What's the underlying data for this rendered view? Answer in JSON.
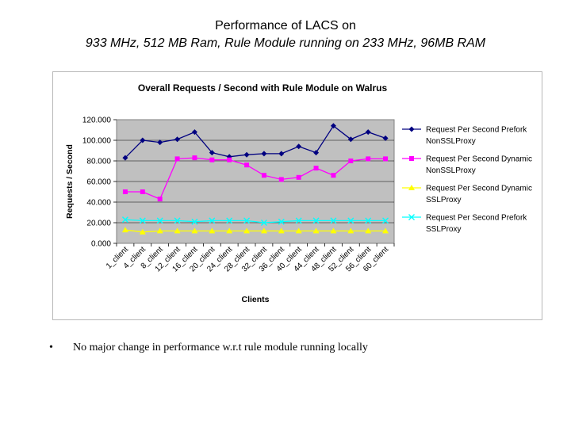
{
  "slide": {
    "title_line1": "Performance of LACS on",
    "title_line2": "933 MHz, 512 MB Ram, Rule Module running on 233 MHz, 96MB RAM",
    "bullet_symbol": "•",
    "bullet_text": "No major change in performance w.r.t rule module running locally"
  },
  "chart_data": {
    "type": "line",
    "title": "Overall Requests / Second with Rule Module on Walrus",
    "xlabel": "Clients",
    "ylabel": "Requests / Second",
    "ylim": [
      0,
      120
    ],
    "yticks": [
      "0.000",
      "20.000",
      "40.000",
      "60.000",
      "80.000",
      "100.000",
      "120.000"
    ],
    "grid": true,
    "legend_position": "right",
    "plot_background": "#c0c0c0",
    "categories": [
      "1_client",
      "4_client",
      "8_client",
      "12_client",
      "16_client",
      "20_client",
      "24_client",
      "28_client",
      "32_client",
      "36_client",
      "40_client",
      "44_client",
      "48_client",
      "52_client",
      "56_client",
      "60_client"
    ],
    "series": [
      {
        "name_line1": "Request Per Second Prefork",
        "name_line2": "NonSSLProxy",
        "color": "#000080",
        "marker": "diamond",
        "values": [
          83,
          100,
          98,
          101,
          108,
          88,
          84,
          86,
          87,
          87,
          94,
          88,
          114,
          101,
          108,
          102
        ]
      },
      {
        "name_line1": "Request Per Second Dynamic",
        "name_line2": "NonSSLProxy",
        "color": "#ff00ff",
        "marker": "square",
        "values": [
          50,
          50,
          43,
          82,
          83,
          81,
          81,
          76,
          66,
          62,
          64,
          73,
          66,
          80,
          82,
          82
        ]
      },
      {
        "name_line1": "Request Per Second Dynamic",
        "name_line2": "SSLProxy",
        "color": "#ffff00",
        "marker": "triangle",
        "values": [
          13,
          11,
          12,
          12,
          12,
          12,
          12,
          12,
          12,
          12,
          12,
          12,
          12,
          12,
          12,
          12
        ]
      },
      {
        "name_line1": "Request Per Second Prefork",
        "name_line2": "SSLProxy",
        "color": "#00ffff",
        "marker": "x",
        "values": [
          23,
          22,
          22,
          22,
          21,
          22,
          22,
          22,
          20,
          21,
          22,
          22,
          22,
          22,
          22,
          22
        ]
      }
    ]
  }
}
